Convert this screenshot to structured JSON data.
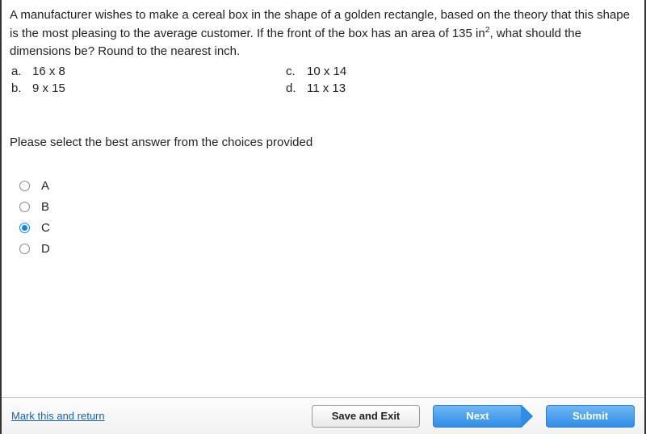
{
  "question": {
    "text_pre": "A manufacturer wishes to make a cereal box in the shape of a golden rectangle, based on the theory that this shape is the most pleasing to the average customer. If the front of the box has an area of 135 in",
    "sup": "2",
    "text_post": ",  what should the dimensions be? Round to the nearest inch."
  },
  "answers": {
    "a": {
      "letter": "a.",
      "value": "16 x 8"
    },
    "b": {
      "letter": "b.",
      "value": "9 x 15"
    },
    "c": {
      "letter": "c.",
      "value": "10 x 14"
    },
    "d": {
      "letter": "d.",
      "value": "11 x 13"
    }
  },
  "instruction": "Please select the best answer from the choices provided",
  "options": {
    "a": "A",
    "b": "B",
    "c": "C",
    "d": "D"
  },
  "selected": "c",
  "footer": {
    "mark": "Mark this and return",
    "save": "Save and Exit",
    "next": "Next",
    "submit": "Submit"
  },
  "colors": {
    "accent": "#0a84ff",
    "button_blue_top": "#6fb8f5",
    "button_blue_bottom": "#2f8de6",
    "link": "#1763b3"
  }
}
